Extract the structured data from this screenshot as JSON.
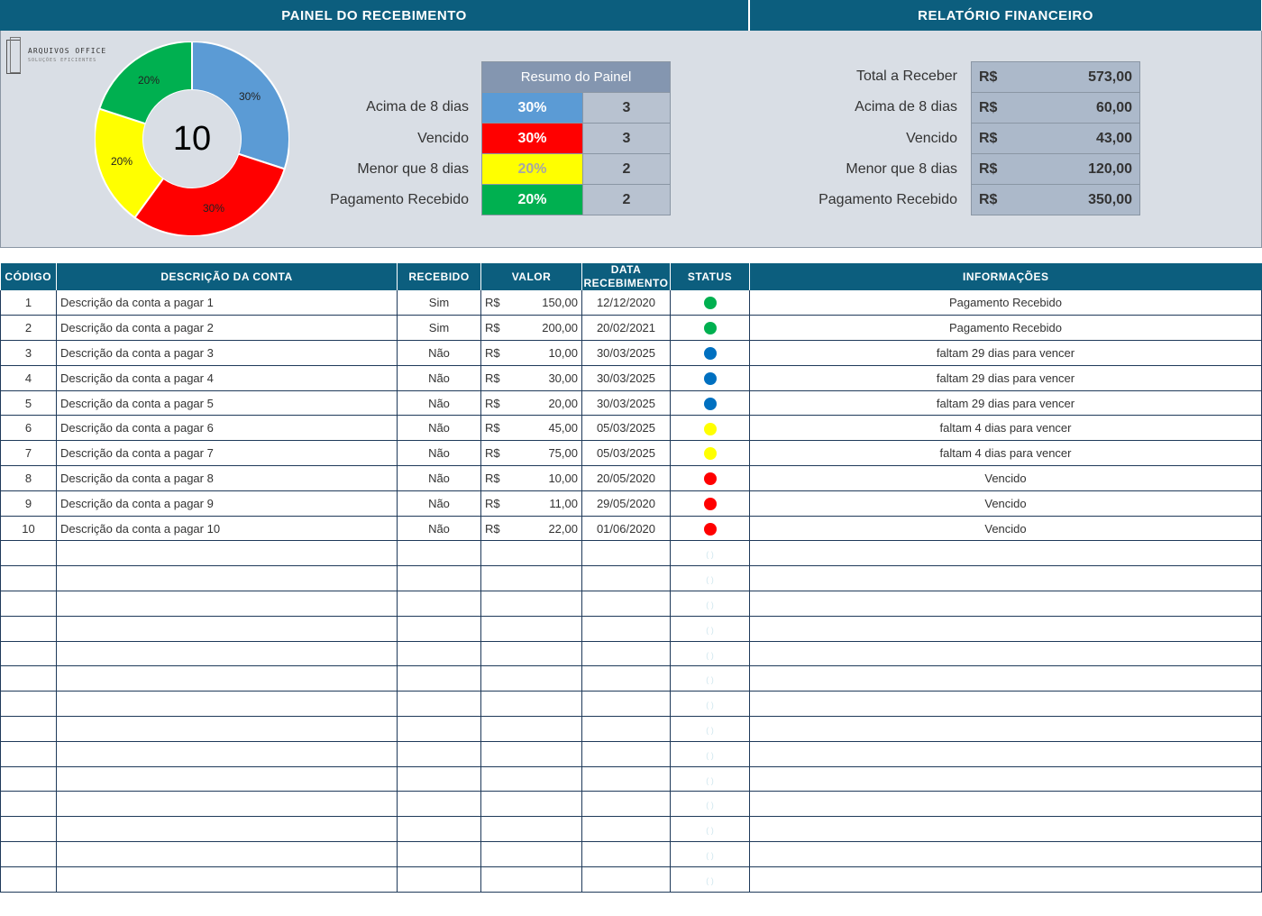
{
  "header": {
    "left_title": "PAINEL DO RECEBIMENTO",
    "right_title": "RELATÓRIO FINANCEIRO"
  },
  "logo": {
    "title": "ARQUIVOS OFFICE",
    "subtitle": "SOLUÇÕES EFICIENTES"
  },
  "donut": {
    "center_value": "10",
    "slices": [
      {
        "label": "30%",
        "value": 30,
        "color": "#5b9bd5"
      },
      {
        "label": "30%",
        "value": 30,
        "color": "#ff0000"
      },
      {
        "label": "20%",
        "value": 20,
        "color": "#ffff00"
      },
      {
        "label": "20%",
        "value": 20,
        "color": "#00b050"
      }
    ]
  },
  "summary": {
    "header": "Resumo do Painel",
    "rows": [
      {
        "label": "Acima de 8 dias",
        "percent": "30%",
        "count": "3",
        "color": "#5b9bd5",
        "text_color": "#ffffff"
      },
      {
        "label": "Vencido",
        "percent": "30%",
        "count": "3",
        "color": "#ff0000",
        "text_color": "#ffffff"
      },
      {
        "label": "Menor que 8 dias",
        "percent": "20%",
        "count": "2",
        "color": "#ffff00",
        "text_color": "#a6a6a6"
      },
      {
        "label": "Pagamento Recebido",
        "percent": "20%",
        "count": "2",
        "color": "#00b050",
        "text_color": "#ffffff"
      }
    ]
  },
  "financial": {
    "rows": [
      {
        "label": "Total a Receber",
        "currency": "R$",
        "amount": "573,00"
      },
      {
        "label": "Acima de 8 dias",
        "currency": "R$",
        "amount": "60,00"
      },
      {
        "label": "Vencido",
        "currency": "R$",
        "amount": "43,00"
      },
      {
        "label": "Menor que 8 dias",
        "currency": "R$",
        "amount": "120,00"
      },
      {
        "label": "Pagamento Recebido",
        "currency": "R$",
        "amount": "350,00"
      }
    ]
  },
  "table": {
    "columns": [
      "CÓDIGO",
      "DESCRIÇÃO DA CONTA",
      "RECEBIDO",
      "VALOR",
      "DATA RECEBIMENTO",
      "STATUS",
      "INFORMAÇÕES"
    ],
    "rows": [
      {
        "code": "1",
        "desc": "Descrição da conta a pagar 1",
        "received": "Sim",
        "currency": "R$",
        "value": "150,00",
        "date": "12/12/2020",
        "status_color": "#00b050",
        "info": "Pagamento Recebido"
      },
      {
        "code": "2",
        "desc": "Descrição da conta a pagar 2",
        "received": "Sim",
        "currency": "R$",
        "value": "200,00",
        "date": "20/02/2021",
        "status_color": "#00b050",
        "info": "Pagamento Recebido"
      },
      {
        "code": "3",
        "desc": "Descrição da conta a pagar 3",
        "received": "Não",
        "currency": "R$",
        "value": "10,00",
        "date": "30/03/2025",
        "status_color": "#0070c0",
        "info": "faltam 29 dias para vencer"
      },
      {
        "code": "4",
        "desc": "Descrição da conta a pagar 4",
        "received": "Não",
        "currency": "R$",
        "value": "30,00",
        "date": "30/03/2025",
        "status_color": "#0070c0",
        "info": "faltam 29 dias para vencer"
      },
      {
        "code": "5",
        "desc": "Descrição da conta a pagar 5",
        "received": "Não",
        "currency": "R$",
        "value": "20,00",
        "date": "30/03/2025",
        "status_color": "#0070c0",
        "info": "faltam 29 dias para vencer"
      },
      {
        "code": "6",
        "desc": "Descrição da conta a pagar 6",
        "received": "Não",
        "currency": "R$",
        "value": "45,00",
        "date": "05/03/2025",
        "status_color": "#ffff00",
        "info": "faltam 4 dias para vencer"
      },
      {
        "code": "7",
        "desc": "Descrição da conta a pagar 7",
        "received": "Não",
        "currency": "R$",
        "value": "75,00",
        "date": "05/03/2025",
        "status_color": "#ffff00",
        "info": "faltam 4 dias para vencer"
      },
      {
        "code": "8",
        "desc": "Descrição da conta a pagar 8",
        "received": "Não",
        "currency": "R$",
        "value": "10,00",
        "date": "20/05/2020",
        "status_color": "#ff0000",
        "info": "Vencido"
      },
      {
        "code": "9",
        "desc": "Descrição da conta a pagar 9",
        "received": "Não",
        "currency": "R$",
        "value": "11,00",
        "date": "29/05/2020",
        "status_color": "#ff0000",
        "info": "Vencido"
      },
      {
        "code": "10",
        "desc": "Descrição da conta a pagar 10",
        "received": "Não",
        "currency": "R$",
        "value": "22,00",
        "date": "01/06/2020",
        "status_color": "#ff0000",
        "info": "Vencido"
      }
    ]
  }
}
